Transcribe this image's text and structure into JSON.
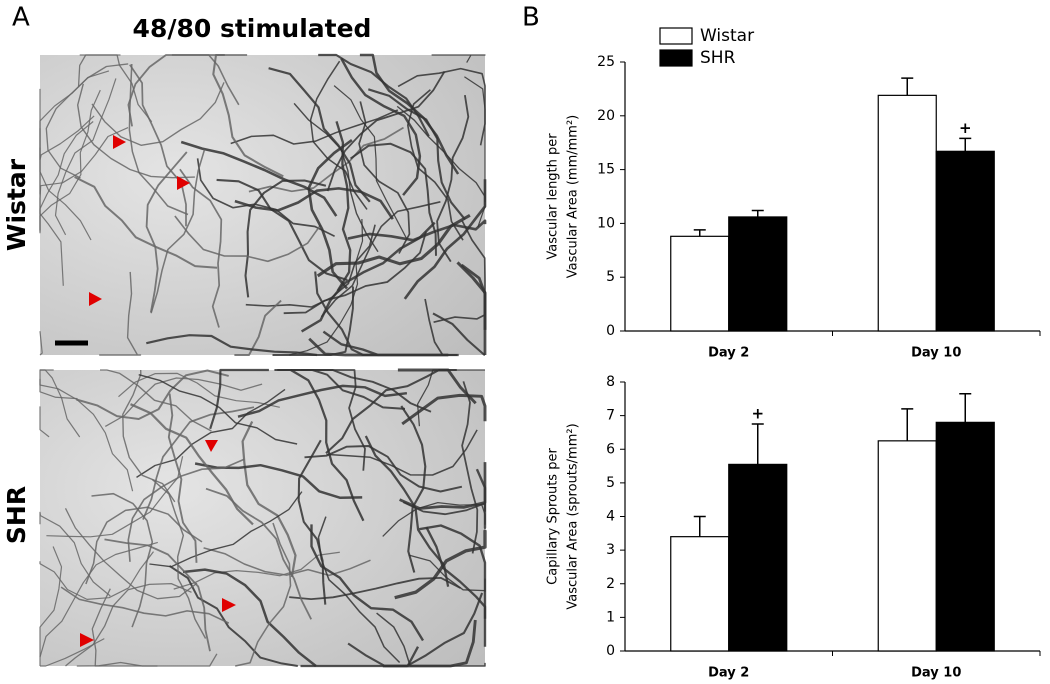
{
  "panel_a": {
    "label": "A",
    "title": "48/80 stimulated",
    "rows": [
      "Wistar",
      "SHR"
    ]
  },
  "panel_b": {
    "label": "B"
  },
  "chart_data": [
    {
      "type": "bar",
      "categories": [
        "Day 2",
        "Day 10"
      ],
      "ylabel": [
        "Vascular length per",
        "Vascular Area (mm/mm²)"
      ],
      "ylim": [
        0,
        25
      ],
      "yticks": [
        0,
        5,
        10,
        15,
        20,
        25
      ],
      "series": [
        {
          "name": "Wistar",
          "color": "#ffffff",
          "values": [
            8.8,
            21.9
          ],
          "errors": [
            0.6,
            1.6
          ],
          "annotations": [
            null,
            null
          ]
        },
        {
          "name": "SHR",
          "color": "#000000",
          "values": [
            10.6,
            16.7
          ],
          "errors": [
            0.6,
            1.2
          ],
          "annotations": [
            null,
            "+"
          ]
        }
      ]
    },
    {
      "type": "bar",
      "categories": [
        "Day 2",
        "Day 10"
      ],
      "ylabel": [
        "Capillary Sprouts per",
        "Vascular Area (sprouts/mm²)"
      ],
      "ylim": [
        0,
        8
      ],
      "yticks": [
        0,
        1,
        2,
        3,
        4,
        5,
        6,
        7,
        8
      ],
      "series": [
        {
          "name": "Wistar",
          "color": "#ffffff",
          "values": [
            3.4,
            6.25
          ],
          "errors": [
            0.6,
            0.95
          ],
          "annotations": [
            null,
            null
          ]
        },
        {
          "name": "SHR",
          "color": "#000000",
          "values": [
            5.55,
            6.8
          ],
          "errors": [
            1.2,
            0.85
          ],
          "annotations": [
            "+",
            null
          ]
        }
      ]
    }
  ]
}
